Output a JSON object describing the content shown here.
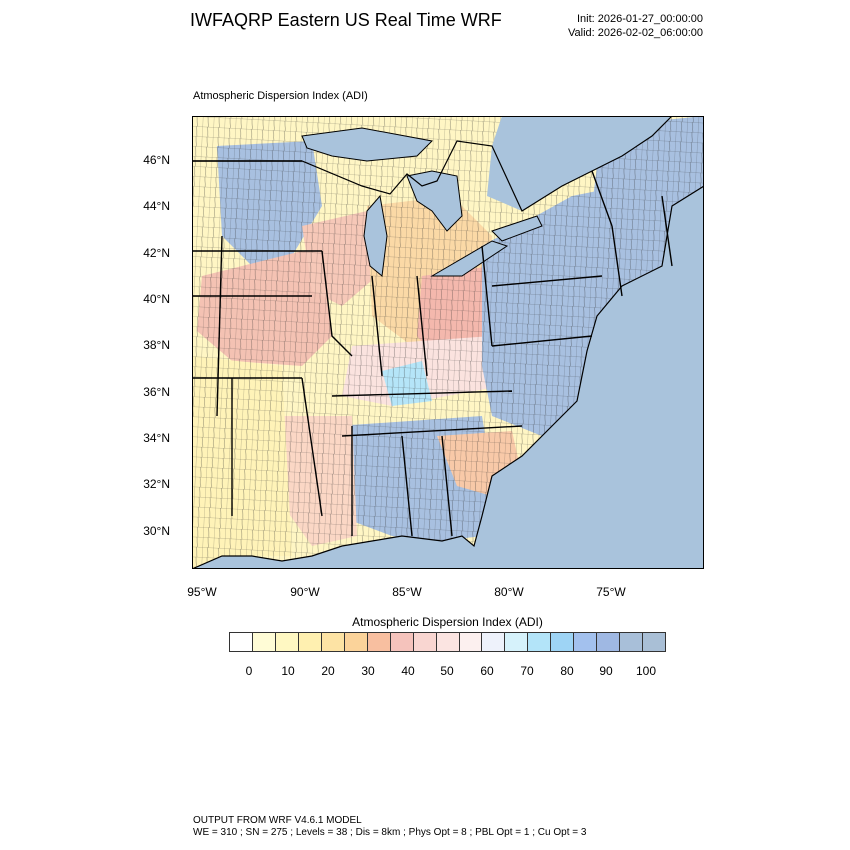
{
  "header": {
    "title": "IWFAQRP Eastern US Real Time WRF",
    "init": "Init: 2026-01-27_00:00:00",
    "valid": "Valid: 2026-02-02_06:00:00"
  },
  "map": {
    "subtitle": "Atmospheric Dispersion Index   (ADI)",
    "lat_labels": [
      "46°N",
      "44°N",
      "42°N",
      "40°N",
      "38°N",
      "36°N",
      "34°N",
      "32°N",
      "30°N"
    ],
    "lon_labels": [
      "95°W",
      "90°W",
      "85°W",
      "80°W",
      "75°W"
    ],
    "colors": {
      "ocean": "#a9c3dc",
      "land_low": "#fffcc8",
      "land_orange": "#fbd9a6",
      "land_red": "#f4b8ad",
      "land_pink": "#fbe3df",
      "land_blue": "#a8c0e0",
      "land_cyan": "#b5e5f8",
      "lakes": "#a9c3dc"
    }
  },
  "colorbar": {
    "title": "Atmospheric Dispersion Index  (ADI)",
    "labels": [
      "0",
      "10",
      "20",
      "30",
      "40",
      "50",
      "60",
      "70",
      "80",
      "90",
      "100"
    ],
    "colors": [
      "#ffffff",
      "#fffcd6",
      "#fff8c2",
      "#fff0b0",
      "#fde3a4",
      "#fbd39a",
      "#f8bfa0",
      "#f5c3bc",
      "#f9d6d1",
      "#fbe4e1",
      "#fcf0ef",
      "#eef2fb",
      "#d6f2fb",
      "#b3e4f9",
      "#9ed4f5",
      "#a3c1ee",
      "#9fb8e3",
      "#a8bfd9",
      "#a9bfd6"
    ]
  },
  "footer": {
    "line1": "OUTPUT FROM WRF V4.6.1 MODEL",
    "line2": "WE = 310 ; SN = 275 ; Levels = 38 ; Dis = 8km ; Phys Opt = 8 ; PBL Opt = 1 ; Cu Opt = 3"
  }
}
